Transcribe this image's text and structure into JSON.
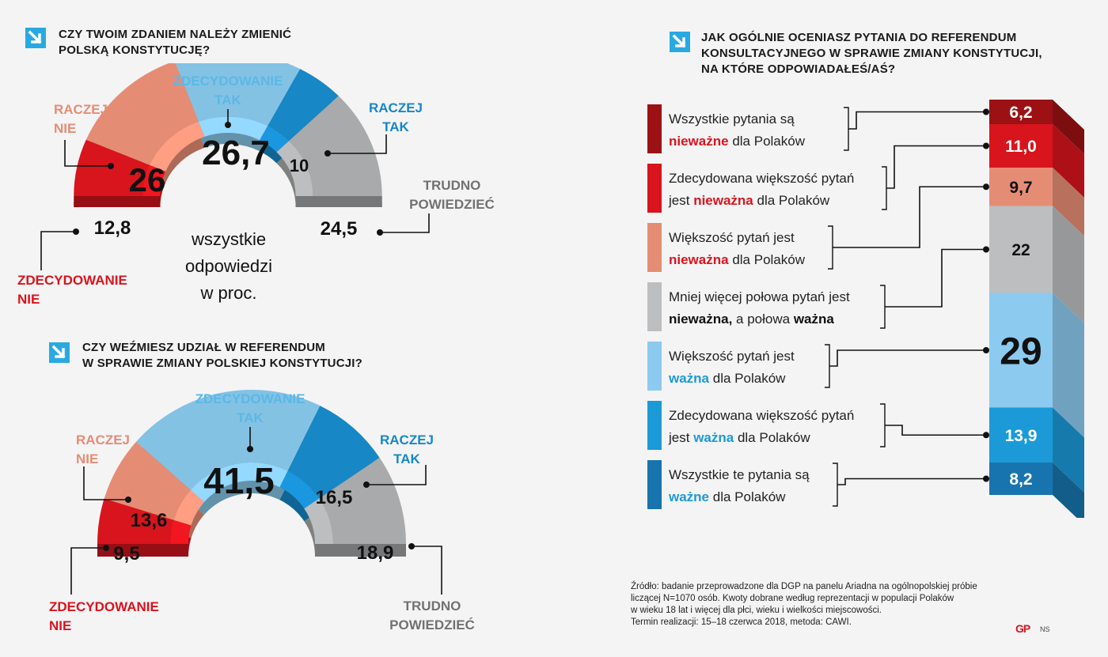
{
  "colors": {
    "zdecydowanie_nie": "#d8141d",
    "raczej_nie": "#e58d74",
    "zdecydowanie_tak": "#84c2e4",
    "raczej_tak": "#1787c6",
    "trudno": "#a9aaab",
    "accent_icon": "#29a9e1",
    "label_red": "#d8141d",
    "label_salmon": "#e58d74",
    "label_lightblue": "#5bb8e6",
    "label_blue": "#1787c6",
    "label_gray": "#707172"
  },
  "chart_data": [
    {
      "type": "pie",
      "variant": "half-donut",
      "title": "Czy Twoim zdaniem należy zmienić polską konstytucję?",
      "center_text": [
        "wszystkie",
        "odpowiedzi",
        "w proc."
      ],
      "categories": [
        "Zdecydowanie nie",
        "Raczej nie",
        "Zdecydowanie tak",
        "Raczej tak",
        "Trudno powiedzieć"
      ],
      "values": [
        12.8,
        26,
        26.7,
        10,
        24.5
      ],
      "value_labels": [
        "12,8",
        "26",
        "26,7",
        "10",
        "24,5"
      ],
      "legend": [
        {
          "line1": "Zdecydowanie",
          "line2": "nie"
        },
        {
          "line1": "Raczej",
          "line2": "nie"
        },
        {
          "line1": "Zdecydowanie",
          "line2": "tak"
        },
        {
          "line1": "Raczej",
          "line2": "tak"
        },
        {
          "line1": "Trudno",
          "line2": "powiedzieć"
        }
      ]
    },
    {
      "type": "pie",
      "variant": "half-donut",
      "title": "Czy weźmiesz udział w referendum w sprawie zmiany polskiej konstytucji?",
      "categories": [
        "Zdecydowanie nie",
        "Raczej nie",
        "Zdecydowanie tak",
        "Raczej tak",
        "Trudno powiedzieć"
      ],
      "values": [
        9.5,
        13.6,
        41.5,
        16.5,
        18.9
      ],
      "value_labels": [
        "9,5",
        "13,6",
        "41,5",
        "16,5",
        "18,9"
      ],
      "legend": [
        {
          "line1": "Zdecydowanie",
          "line2": "nie"
        },
        {
          "line1": "Raczej",
          "line2": "nie"
        },
        {
          "line1": "Zdecydowanie",
          "line2": "tak"
        },
        {
          "line1": "Raczej",
          "line2": "tak"
        },
        {
          "line1": "Trudno",
          "line2": "powiedzieć"
        }
      ]
    },
    {
      "type": "bar",
      "variant": "stacked-column",
      "title": "Jak ogólnie oceniasz pytania do referendum konsultacyjnego w sprawie zmiany konstytucji, na które odpowiadałeś/aś?",
      "categories": [
        "Wszystkie pytania są nieważne dla Polaków",
        "Zdecydowana większość pytań jest nieważna dla Polaków",
        "Większość pytań jest nieważna dla Polaków",
        "Mniej więcej połowa pytań jest nieważna, a połowa ważna",
        "Większość pytań jest ważna dla Polaków",
        "Zdecydowana większość pytań jest ważna dla Polaków",
        "Wszystkie te pytania są ważne dla Polaków"
      ],
      "values": [
        6.2,
        11.0,
        9.7,
        22,
        29,
        13.9,
        8.2
      ],
      "value_labels": [
        "6,2",
        "11,0",
        "9,7",
        "22",
        "29",
        "13,9",
        "8,2"
      ]
    }
  ],
  "q1": {
    "title_line1": "Czy Twoim zdaniem należy zmienić",
    "title_line2": "polską konstytucję?"
  },
  "q2": {
    "title_line1": "Czy weźmiesz udział w referendum",
    "title_line2": "w sprawie zmiany polskiej konstytucji?"
  },
  "q3": {
    "title_line1": "Jak ogólnie oceniasz pytania do referendum",
    "title_line2": "konsultacyjnego w sprawie zmiany konstytucji,",
    "title_line3": "na które odpowiadałeś/aś?",
    "rows": [
      {
        "l1a": "Wszystkie pytania są",
        "l1b": "",
        "l2a": "",
        "l2b": "nieważne",
        "l2c": " dla Polaków",
        "hl": "red"
      },
      {
        "l1a": "Zdecydowana większość pytań",
        "l1b": "",
        "l2a": "jest ",
        "l2b": "nieważna",
        "l2c": " dla Polaków",
        "hl": "red"
      },
      {
        "l1a": "Większość pytań jest",
        "l1b": "",
        "l2a": "",
        "l2b": "nieważna",
        "l2c": " dla Polaków",
        "hl": "red"
      },
      {
        "l1a": "Mniej więcej połowa pytań jest",
        "l1b": "",
        "l2a": "",
        "l2b": "nieważna,",
        "l2c": " a połowa ",
        "l2d": "ważna",
        "hl": "black"
      },
      {
        "l1a": "Większość pytań jest",
        "l1b": "",
        "l2a": "",
        "l2b": "ważna",
        "l2c": " dla Polaków",
        "hl": "blue"
      },
      {
        "l1a": "Zdecydowana większość pytań",
        "l1b": "",
        "l2a": "jest ",
        "l2b": "ważna",
        "l2c": " dla Polaków",
        "hl": "blue"
      },
      {
        "l1a": "Wszystkie te pytania są",
        "l1b": "",
        "l2a": "",
        "l2b": "ważne",
        "l2c": " dla Polaków",
        "hl": "blue"
      }
    ]
  },
  "source": {
    "line1": "Źródło: badanie przeprowadzone dla DGP na panelu Ariadna na ogólnopolskiej próbie",
    "line2": "liczącej N=1070 osób. Kwoty dobrane według reprezentacji w populacji Polaków",
    "line3": "w wieku 18 lat i więcej dla płci, wieku i wielkości miejscowości.",
    "line4": "Termin realizacji: 15–18 czerwca 2018, metoda: CAWI.",
    "logo": "GP",
    "credit": "NS"
  }
}
